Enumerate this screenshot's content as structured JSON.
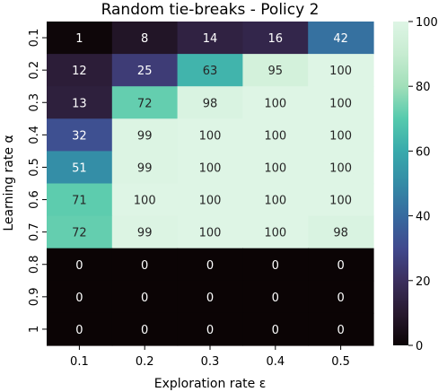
{
  "chart_data": {
    "type": "heatmap",
    "title": "Random tie-breaks - Policy 2",
    "xlabel": "Exploration rate ε",
    "ylabel": "Learning rate α",
    "x_categories": [
      "0.1",
      "0.2",
      "0.3",
      "0.4",
      "0.5"
    ],
    "y_categories": [
      "0.1",
      "0.2",
      "0.3",
      "0.4",
      "0.5",
      "0.6",
      "0.7",
      "0.8",
      "0.9",
      "1"
    ],
    "values": [
      [
        1,
        8,
        14,
        16,
        42
      ],
      [
        12,
        25,
        63,
        95,
        100
      ],
      [
        13,
        72,
        98,
        100,
        100
      ],
      [
        32,
        99,
        100,
        100,
        100
      ],
      [
        51,
        99,
        100,
        100,
        100
      ],
      [
        71,
        100,
        100,
        100,
        100
      ],
      [
        72,
        99,
        100,
        100,
        98
      ],
      [
        0,
        0,
        0,
        0,
        0
      ],
      [
        0,
        0,
        0,
        0,
        0
      ],
      [
        0,
        0,
        0,
        0,
        0
      ]
    ],
    "colorbar": {
      "range": [
        0,
        100
      ],
      "ticks": [
        "0",
        "20",
        "40",
        "60",
        "80",
        "100"
      ],
      "colormap": "mako"
    },
    "annotate_cells": true,
    "grid": false
  }
}
